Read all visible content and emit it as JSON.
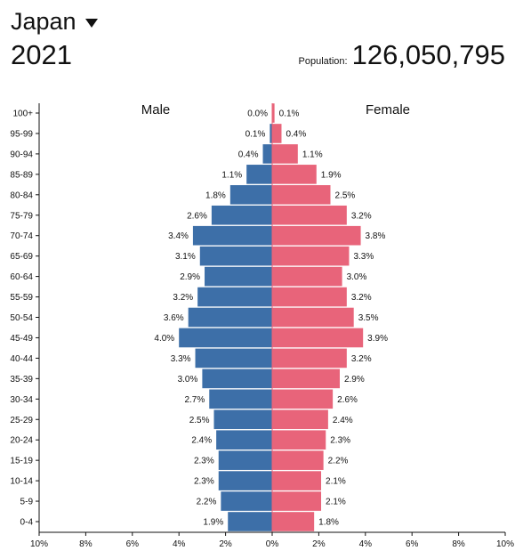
{
  "header": {
    "country": "Japan",
    "year": "2021",
    "population_label": "Population:",
    "population_value": "126,050,795"
  },
  "colors": {
    "male": "#3d6fa8",
    "female": "#e8647a",
    "axis": "#111111"
  },
  "chart_data": {
    "type": "bar",
    "orientation": "horizontal-diverging",
    "title": "",
    "series_labels": {
      "male": "Male",
      "female": "Female"
    },
    "unit": "%",
    "categories": [
      "100+",
      "95-99",
      "90-94",
      "85-89",
      "80-84",
      "75-79",
      "70-74",
      "65-69",
      "60-64",
      "55-59",
      "50-54",
      "45-49",
      "40-44",
      "35-39",
      "30-34",
      "25-29",
      "20-24",
      "15-19",
      "10-14",
      "5-9",
      "0-4"
    ],
    "series": [
      {
        "name": "Male",
        "values": [
          0.0,
          0.1,
          0.4,
          1.1,
          1.8,
          2.6,
          3.4,
          3.1,
          2.9,
          3.2,
          3.6,
          4.0,
          3.3,
          3.0,
          2.7,
          2.5,
          2.4,
          2.3,
          2.3,
          2.2,
          1.9
        ],
        "labels": [
          "0.0%",
          "0.1%",
          "0.4%",
          "1.1%",
          "1.8%",
          "2.6%",
          "3.4%",
          "3.1%",
          "2.9%",
          "3.2%",
          "3.6%",
          "4.0%",
          "3.3%",
          "3.0%",
          "2.7%",
          "2.5%",
          "2.4%",
          "2.3%",
          "2.3%",
          "2.2%",
          "1.9%"
        ]
      },
      {
        "name": "Female",
        "values": [
          0.1,
          0.4,
          1.1,
          1.9,
          2.5,
          3.2,
          3.8,
          3.3,
          3.0,
          3.2,
          3.5,
          3.9,
          3.2,
          2.9,
          2.6,
          2.4,
          2.3,
          2.2,
          2.1,
          2.1,
          1.8
        ],
        "labels": [
          "0.1%",
          "0.4%",
          "1.1%",
          "1.9%",
          "2.5%",
          "3.2%",
          "3.8%",
          "3.3%",
          "3.0%",
          "3.2%",
          "3.5%",
          "3.9%",
          "3.2%",
          "2.9%",
          "2.6%",
          "2.4%",
          "2.3%",
          "2.2%",
          "2.1%",
          "2.1%",
          "1.8%"
        ]
      }
    ],
    "x_ticks": [
      "10%",
      "8%",
      "6%",
      "4%",
      "2%",
      "0%",
      "2%",
      "4%",
      "6%",
      "8%",
      "10%"
    ],
    "xlim": [
      -10,
      10
    ],
    "grid": false
  }
}
